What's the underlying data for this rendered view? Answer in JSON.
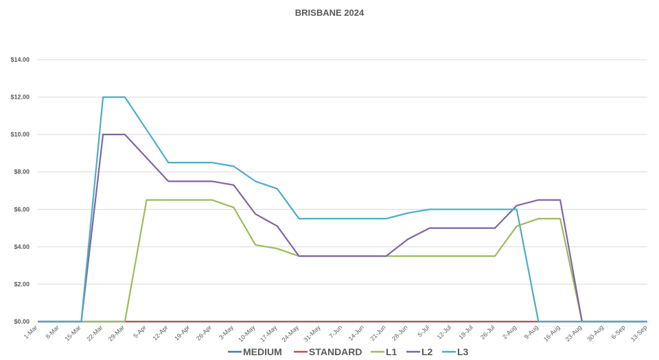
{
  "chart_data": {
    "type": "line",
    "title": "BRISBANE 2024",
    "xlabel": "",
    "ylabel": "",
    "ylim": [
      0,
      14
    ],
    "y_ticks": [
      0,
      2,
      4,
      6,
      8,
      10,
      12,
      14
    ],
    "y_tick_labels": [
      "$0.00",
      "$2.00",
      "$4.00",
      "$6.00",
      "$8.00",
      "$10.00",
      "$12.00",
      "$14.00"
    ],
    "grid": true,
    "legend_position": "bottom",
    "categories": [
      "1-Mar",
      "8-Mar",
      "15-Mar",
      "22-Mar",
      "29-Mar",
      "5-Apr",
      "12-Apr",
      "19-Apr",
      "26-Apr",
      "3-May",
      "10-May",
      "17-May",
      "24-May",
      "31-May",
      "7-Jun",
      "14-Jun",
      "21-Jun",
      "28-Jun",
      "5-Jul",
      "12-Jul",
      "19-Jul",
      "26-Jul",
      "2-Aug",
      "9-Aug",
      "16-Aug",
      "23-Aug",
      "30-Aug",
      "6-Sep",
      "13-Sep"
    ],
    "series": [
      {
        "name": "MEDIUM",
        "color": "#4472c4",
        "values": [
          0,
          0,
          0,
          0,
          0,
          0,
          0,
          0,
          0,
          0,
          0,
          0,
          0,
          0,
          0,
          0,
          0,
          0,
          0,
          0,
          0,
          0,
          0,
          0,
          0,
          0,
          0,
          0,
          0
        ]
      },
      {
        "name": "STANDARD",
        "color": "#c0504d",
        "values": [
          0,
          0,
          0,
          0,
          0,
          0,
          0,
          0,
          0,
          0,
          0,
          0,
          0,
          0,
          0,
          0,
          0,
          0,
          0,
          0,
          0,
          0,
          0,
          0,
          0,
          0,
          0,
          0,
          0
        ]
      },
      {
        "name": "L1",
        "color": "#9bbb59",
        "values": [
          0,
          0,
          0,
          0,
          0,
          6.5,
          6.5,
          6.5,
          6.5,
          6.1,
          4.1,
          3.9,
          3.5,
          3.5,
          3.5,
          3.5,
          3.5,
          3.5,
          3.5,
          3.5,
          3.5,
          3.5,
          5.1,
          5.5,
          5.5,
          0,
          0,
          0,
          0
        ]
      },
      {
        "name": "L2",
        "color": "#8064a2",
        "values": [
          0,
          0,
          0,
          10,
          10,
          8.75,
          7.5,
          7.5,
          7.5,
          7.3,
          5.75,
          5.1,
          3.5,
          3.5,
          3.5,
          3.5,
          3.5,
          4.4,
          5,
          5,
          5,
          5,
          6.2,
          6.5,
          6.5,
          0,
          0,
          0,
          0
        ]
      },
      {
        "name": "L3",
        "color": "#4bacc6",
        "values": [
          0,
          0,
          0,
          12,
          12,
          10.25,
          8.5,
          8.5,
          8.5,
          8.3,
          7.5,
          7.1,
          5.5,
          5.5,
          5.5,
          5.5,
          5.5,
          5.8,
          6,
          6,
          6,
          6,
          6,
          0,
          0,
          0,
          0,
          0,
          0
        ]
      }
    ]
  }
}
